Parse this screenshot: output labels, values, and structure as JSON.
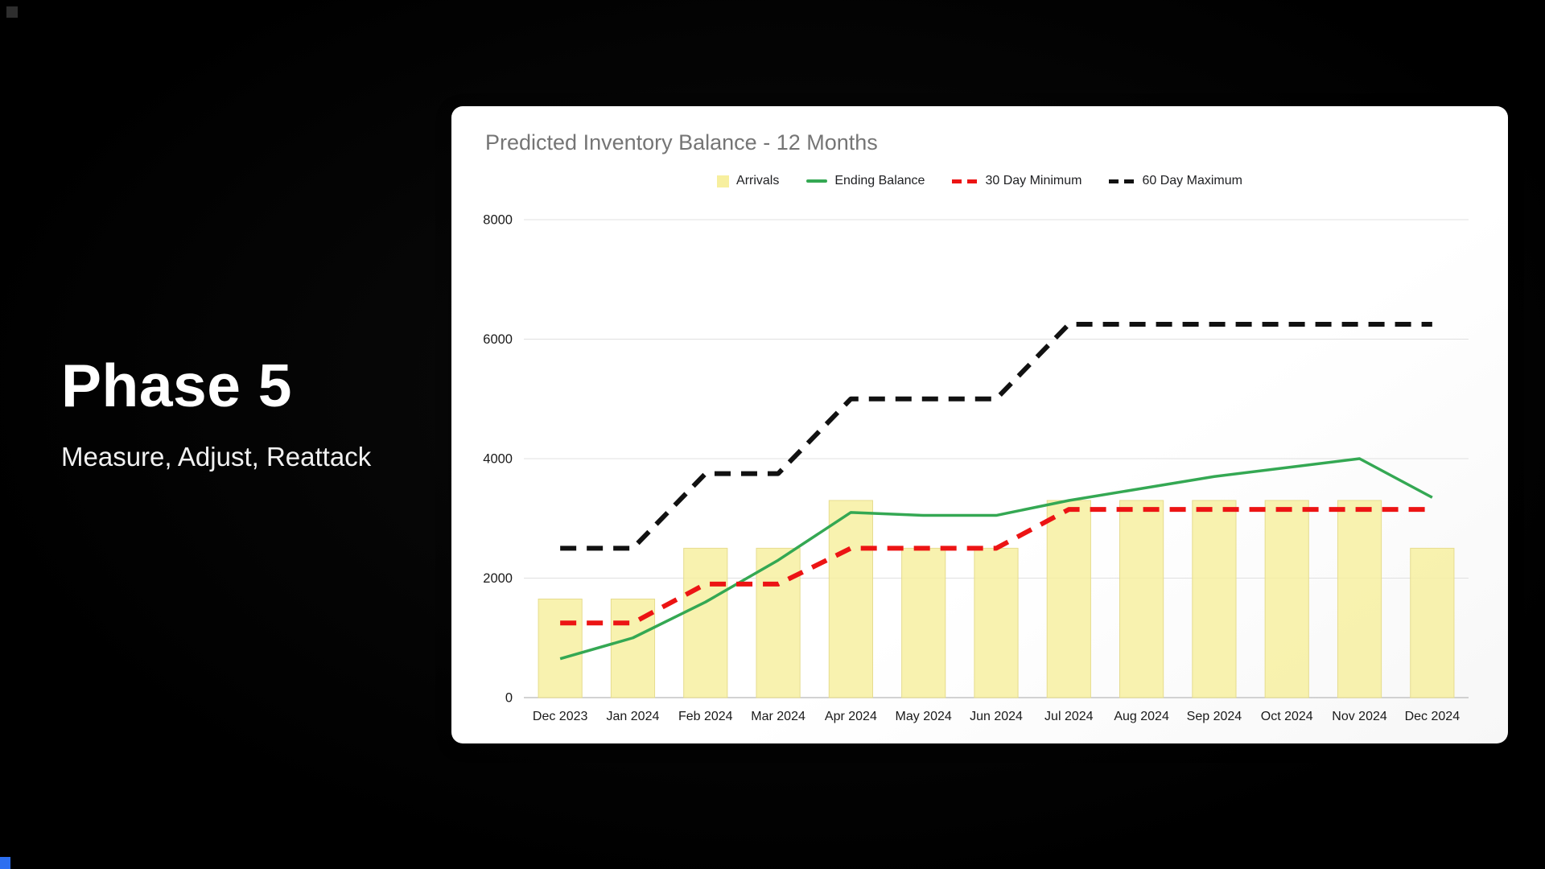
{
  "slide": {
    "title": "Phase 5",
    "subtitle": "Measure, Adjust, Reattack"
  },
  "chart": {
    "title": "Predicted Inventory Balance - 12 Months"
  },
  "chart_data": {
    "type": "bar",
    "subtype": "combo-bar-line",
    "title": "Predicted Inventory Balance - 12 Months",
    "categories": [
      "Dec 2023",
      "Jan 2024",
      "Feb 2024",
      "Mar 2024",
      "Apr 2024",
      "May 2024",
      "Jun 2024",
      "Jul 2024",
      "Aug 2024",
      "Sep 2024",
      "Oct 2024",
      "Nov 2024",
      "Dec 2024"
    ],
    "series": [
      {
        "name": "Arrivals",
        "type": "bar",
        "style": "solid",
        "color": "#f7ef9e",
        "values": [
          1650,
          1650,
          2500,
          2500,
          3300,
          2500,
          2500,
          3300,
          3300,
          3300,
          3300,
          3300,
          2500
        ]
      },
      {
        "name": "Ending Balance",
        "type": "line",
        "style": "solid",
        "color": "#34a853",
        "values": [
          650,
          1000,
          1600,
          2300,
          3100,
          3050,
          3050,
          3300,
          3500,
          3700,
          3850,
          4000,
          3350
        ]
      },
      {
        "name": "30 Day Minimum",
        "type": "line",
        "style": "dashed",
        "color": "#ec1414",
        "values": [
          1250,
          1250,
          1900,
          1900,
          2500,
          2500,
          2500,
          3150,
          3150,
          3150,
          3150,
          3150,
          3150
        ]
      },
      {
        "name": "60 Day Maximum",
        "type": "line",
        "style": "dashed",
        "color": "#111111",
        "values": [
          2500,
          2500,
          3750,
          3750,
          5000,
          5000,
          5000,
          6250,
          6250,
          6250,
          6250,
          6250,
          6250
        ]
      }
    ],
    "xlabel": "",
    "ylabel": "",
    "ylim": [
      0,
      8000
    ],
    "yticks": [
      0,
      2000,
      4000,
      6000,
      8000
    ],
    "grid": true,
    "legend_position": "top"
  }
}
